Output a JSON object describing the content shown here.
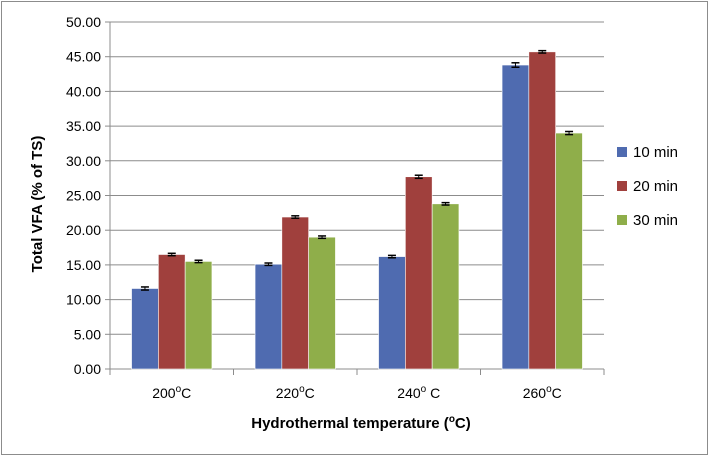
{
  "chart_data": {
    "type": "bar",
    "categories": [
      {
        "base": "200",
        "sup": "o",
        "tail": "C"
      },
      {
        "base": "220",
        "sup": "o",
        "tail": "C"
      },
      {
        "base": "240",
        "sup": "o",
        "tail": " C"
      },
      {
        "base": "260",
        "sup": "o",
        "tail": "C"
      }
    ],
    "series": [
      {
        "name": "10 min",
        "color": "#4f6bb0",
        "values": [
          11.6,
          15.1,
          16.2,
          43.8
        ],
        "errors": [
          0.15,
          0.1,
          0.1,
          0.25
        ]
      },
      {
        "name": "20 min",
        "color": "#a0403d",
        "values": [
          16.5,
          21.9,
          27.7,
          45.7
        ],
        "errors": [
          0.1,
          0.1,
          0.15,
          0.1
        ]
      },
      {
        "name": "30 min",
        "color": "#8fae4a",
        "values": [
          15.5,
          19.0,
          23.8,
          34.0
        ],
        "errors": [
          0.1,
          0.1,
          0.1,
          0.15
        ]
      }
    ],
    "ylim": [
      0,
      50
    ],
    "ytick_step": 5,
    "ytick_labels": [
      "0.00",
      "5.00",
      "10.00",
      "15.00",
      "20.00",
      "25.00",
      "30.00",
      "35.00",
      "40.00",
      "45.00",
      "50.00"
    ],
    "ylabel": "Total VFA (% of TS)",
    "xlabel": {
      "pre": "Hydrothermal temperature (",
      "sup": "o",
      "post": "C)"
    },
    "grid": true,
    "legend_position": "right",
    "error_bars": true
  }
}
